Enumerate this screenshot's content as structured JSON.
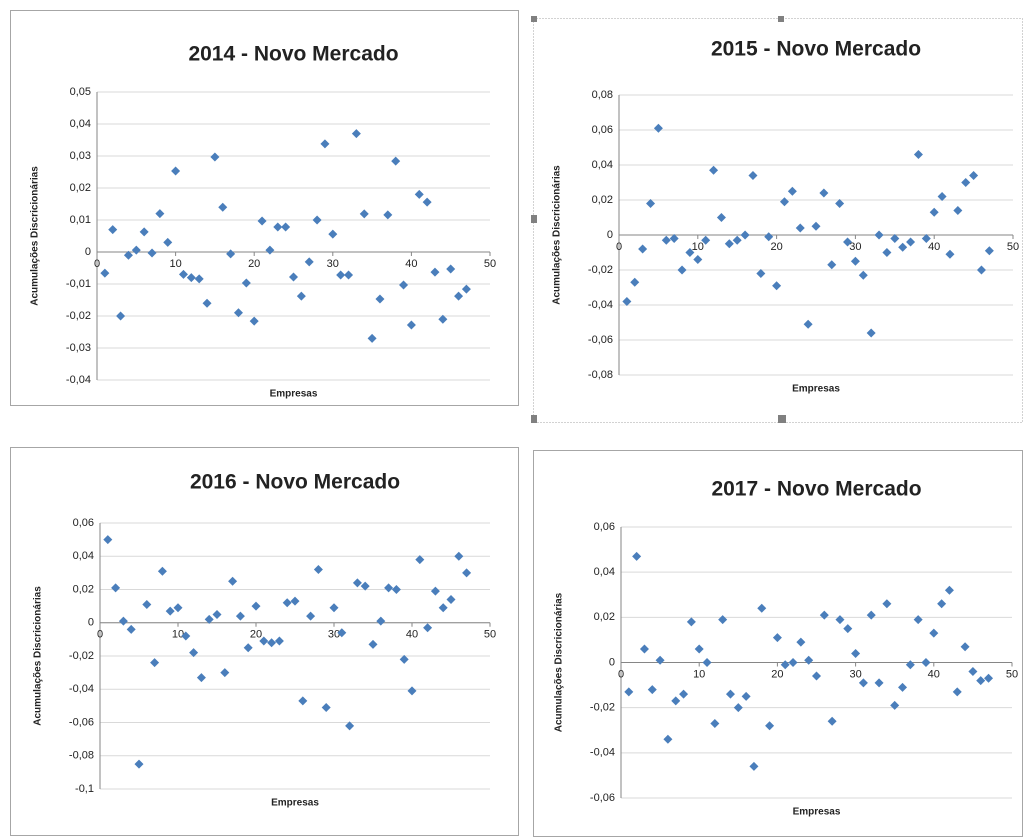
{
  "chart_data": [
    {
      "type": "scatter",
      "title": "2014 - Novo Mercado",
      "x_label": "Empresas",
      "y_label": "Acumulações Discricionárias",
      "color": "#4a7ebb",
      "x": [
        1,
        2,
        3,
        4,
        5,
        6,
        7,
        8,
        9,
        10,
        11,
        12,
        13,
        14,
        15,
        16,
        17,
        18,
        19,
        20,
        21,
        22,
        23,
        24,
        25,
        26,
        27,
        28,
        29,
        30,
        31,
        32,
        33,
        34,
        35,
        36,
        37,
        38,
        39,
        40,
        41,
        42,
        43,
        44,
        45,
        46,
        47
      ],
      "values": [
        -0.0066,
        0.007,
        -0.02,
        -0.001,
        0.0006,
        0.0063,
        -0.0003,
        0.012,
        0.003,
        0.0253,
        -0.007,
        -0.008,
        -0.0084,
        -0.016,
        0.0297,
        0.014,
        -0.0006,
        -0.019,
        -0.0097,
        -0.0216,
        0.0097,
        0.0006,
        0.0078,
        0.0078,
        -0.0078,
        -0.0138,
        -0.0031,
        0.01,
        0.0338,
        0.0056,
        -0.0072,
        -0.0072,
        0.037,
        0.0119,
        -0.027,
        -0.0147,
        0.0116,
        0.0284,
        -0.0103,
        -0.0228,
        0.018,
        0.0156,
        -0.0063,
        -0.021,
        -0.0053,
        -0.0138,
        -0.0116
      ],
      "xlim": [
        0,
        50
      ],
      "xticks": [
        0,
        10,
        20,
        30,
        40,
        50
      ],
      "ylim": [
        -0.04,
        0.05
      ],
      "yticks": [
        {
          "value": -0.04,
          "label": "-0,04"
        },
        {
          "value": -0.03,
          "label": "-0,03"
        },
        {
          "value": -0.02,
          "label": "-0,02"
        },
        {
          "value": -0.01,
          "label": "-0,01"
        },
        0,
        {
          "value": 0.01,
          "label": "0,01"
        },
        {
          "value": 0.02,
          "label": "0,02"
        },
        {
          "value": 0.03,
          "label": "0,03"
        },
        {
          "value": 0.04,
          "label": "0,04"
        },
        {
          "value": 0.05,
          "label": "0,05"
        }
      ],
      "grid": true
    },
    {
      "type": "scatter",
      "title": "2015 - Novo Mercado",
      "x_label": "Empresas",
      "y_label": "Acumulações Discricionárias",
      "color": "#4a7ebb",
      "x": [
        1,
        2,
        3,
        4,
        5,
        6,
        7,
        8,
        9,
        10,
        11,
        12,
        13,
        14,
        15,
        16,
        17,
        18,
        19,
        20,
        21,
        22,
        23,
        24,
        25,
        26,
        27,
        28,
        29,
        30,
        31,
        32,
        33,
        34,
        35,
        36,
        37,
        38,
        39,
        40,
        41,
        42,
        43,
        44,
        45,
        46,
        47
      ],
      "values": [
        -0.038,
        -0.027,
        -0.008,
        0.018,
        0.061,
        -0.003,
        -0.002,
        -0.02,
        -0.01,
        -0.014,
        -0.003,
        0.037,
        0.01,
        -0.005,
        -0.003,
        0,
        0.034,
        -0.022,
        -0.001,
        -0.029,
        0.019,
        0.025,
        0.004,
        -0.051,
        0.005,
        0.024,
        -0.017,
        0.018,
        -0.004,
        -0.015,
        -0.023,
        -0.056,
        0,
        -0.01,
        -0.002,
        -0.007,
        -0.004,
        0.046,
        -0.002,
        0.013,
        0.022,
        -0.011,
        0.014,
        0.03,
        0.034,
        -0.02,
        -0.009
      ],
      "xlim": [
        0,
        50
      ],
      "xticks": [
        0,
        10,
        20,
        30,
        40,
        50
      ],
      "ylim": [
        -0.08,
        0.08
      ],
      "yticks": [
        {
          "value": -0.08,
          "label": "-0,08"
        },
        {
          "value": -0.06,
          "label": "-0,06"
        },
        {
          "value": -0.04,
          "label": "-0,04"
        },
        {
          "value": -0.02,
          "label": "-0,02"
        },
        0,
        {
          "value": 0.02,
          "label": "0,02"
        },
        {
          "value": 0.04,
          "label": "0,04"
        },
        {
          "value": 0.06,
          "label": "0,06"
        },
        {
          "value": 0.08,
          "label": "0,08"
        }
      ],
      "grid": true
    },
    {
      "type": "scatter",
      "title": "2016 - Novo Mercado",
      "x_label": "Empresas",
      "y_label": "Acumulações Discricionárias",
      "color": "#4a7ebb",
      "x": [
        1,
        2,
        3,
        4,
        5,
        6,
        7,
        8,
        9,
        10,
        11,
        12,
        13,
        14,
        15,
        16,
        17,
        18,
        19,
        20,
        21,
        22,
        23,
        24,
        25,
        26,
        27,
        28,
        29,
        30,
        31,
        32,
        33,
        34,
        35,
        36,
        37,
        38,
        39,
        40,
        41,
        42,
        43,
        44,
        45,
        46,
        47
      ],
      "values": [
        0.05,
        0.021,
        0.001,
        -0.004,
        -0.085,
        0.011,
        -0.024,
        0.031,
        0.007,
        0.009,
        -0.008,
        -0.018,
        -0.033,
        0.002,
        0.005,
        -0.03,
        0.025,
        0.004,
        -0.015,
        0.01,
        -0.011,
        -0.012,
        -0.011,
        0.012,
        0.013,
        -0.047,
        0.004,
        0.032,
        -0.051,
        0.009,
        -0.006,
        -0.062,
        0.024,
        0.022,
        -0.013,
        0.001,
        0.021,
        0.02,
        -0.022,
        -0.041,
        0.038,
        -0.003,
        0.019,
        0.009,
        0.014,
        0.04,
        0.03
      ],
      "xlim": [
        0,
        50
      ],
      "xticks": [
        0,
        10,
        20,
        30,
        40,
        50
      ],
      "ylim": [
        -0.1,
        0.06
      ],
      "yticks": [
        {
          "value": -0.1,
          "label": "-0,1"
        },
        {
          "value": -0.08,
          "label": "-0,08"
        },
        {
          "value": -0.06,
          "label": "-0,06"
        },
        {
          "value": -0.04,
          "label": "-0,04"
        },
        {
          "value": -0.02,
          "label": "-0,02"
        },
        0,
        {
          "value": 0.02,
          "label": "0,02"
        },
        {
          "value": 0.04,
          "label": "0,04"
        },
        {
          "value": 0.06,
          "label": "0,06"
        }
      ],
      "grid": true
    },
    {
      "type": "scatter",
      "title": "2017 - Novo Mercado",
      "x_label": "Empresas",
      "y_label": "Acumulações Discricionárias",
      "color": "#4a7ebb",
      "x": [
        1,
        2,
        3,
        4,
        5,
        6,
        7,
        8,
        9,
        10,
        11,
        12,
        13,
        14,
        15,
        16,
        17,
        18,
        19,
        20,
        21,
        22,
        23,
        24,
        25,
        26,
        27,
        28,
        29,
        30,
        31,
        32,
        33,
        34,
        35,
        36,
        37,
        38,
        39,
        40,
        41,
        42,
        43,
        44,
        45,
        46,
        47
      ],
      "values": [
        -0.013,
        0.047,
        0.006,
        -0.012,
        0.001,
        -0.034,
        -0.017,
        -0.014,
        0.018,
        0.006,
        0,
        -0.027,
        0.019,
        -0.014,
        -0.02,
        -0.015,
        -0.046,
        0.024,
        -0.028,
        0.011,
        -0.001,
        0,
        0.009,
        0.001,
        -0.006,
        0.021,
        -0.026,
        0.019,
        0.015,
        0.004,
        -0.009,
        0.021,
        -0.009,
        0.026,
        -0.019,
        -0.011,
        -0.001,
        0.019,
        0,
        0.013,
        0.026,
        0.032,
        -0.013,
        0.007,
        -0.004,
        -0.008,
        -0.007
      ],
      "xlim": [
        0,
        50
      ],
      "xticks": [
        0,
        10,
        20,
        30,
        40,
        50
      ],
      "ylim": [
        -0.06,
        0.06
      ],
      "yticks": [
        {
          "value": -0.06,
          "label": "-0,06"
        },
        {
          "value": -0.04,
          "label": "-0,04"
        },
        {
          "value": -0.02,
          "label": "-0,02"
        },
        0,
        {
          "value": 0.02,
          "label": "0,02"
        },
        {
          "value": 0.04,
          "label": "0,04"
        },
        {
          "value": 0.06,
          "label": "0,06"
        }
      ],
      "grid": true
    }
  ]
}
